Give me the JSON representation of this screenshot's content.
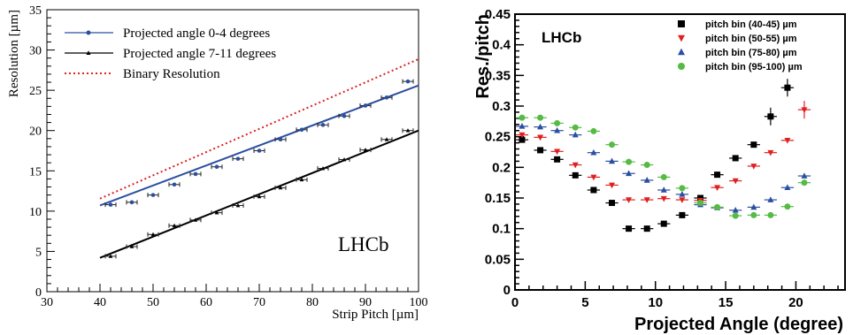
{
  "chart_data": [
    {
      "type": "scatter",
      "title": "",
      "xlabel": "Strip Pitch [µm]",
      "ylabel": "Resolution [µm]",
      "xlim": [
        30,
        100
      ],
      "ylim": [
        0,
        35
      ],
      "xticks": [
        "30",
        "40",
        "50",
        "60",
        "70",
        "80",
        "90",
        "100"
      ],
      "yticks": [
        "0",
        "5",
        "10",
        "15",
        "20",
        "25",
        "30",
        "35"
      ],
      "grid": false,
      "legend_position": "top-left",
      "annotation": "LHCb",
      "series": [
        {
          "name": "Projected angle 0-4 degrees",
          "color": "#2b4fa0",
          "marker": "circle",
          "x": [
            42,
            46,
            50,
            54,
            58,
            62,
            66,
            70,
            74,
            78,
            82,
            86,
            90,
            94,
            98
          ],
          "y": [
            10.8,
            11.1,
            12.0,
            13.3,
            14.6,
            15.5,
            16.5,
            17.5,
            18.9,
            20.1,
            20.7,
            21.8,
            23.1,
            24.1,
            26.1
          ],
          "fit": [
            [
              40,
              10.7
            ],
            [
              100,
              25.6
            ]
          ]
        },
        {
          "name": "Projected angle 7-11 degrees",
          "color": "#000000",
          "marker": "triangle",
          "x": [
            42,
            46,
            50,
            54,
            58,
            62,
            66,
            70,
            74,
            78,
            82,
            86,
            90,
            94,
            98
          ],
          "y": [
            4.4,
            5.6,
            7.1,
            8.2,
            8.9,
            9.8,
            10.7,
            11.8,
            12.9,
            13.9,
            15.3,
            16.4,
            17.6,
            18.9,
            20.0
          ],
          "fit": [
            [
              40,
              4.2
            ],
            [
              100,
              20.0
            ]
          ]
        },
        {
          "name": "Binary Resolution",
          "color": "#e02020",
          "style": "dotted",
          "x": [
            40,
            100
          ],
          "y": [
            11.55,
            28.87
          ]
        }
      ]
    },
    {
      "type": "scatter",
      "title": "",
      "xlabel": "Projected Angle (degree)",
      "ylabel": "Res./pitch",
      "xlim": [
        0,
        23.5
      ],
      "ylim": [
        0,
        0.45
      ],
      "xticks": [
        "0",
        "5",
        "10",
        "15",
        "20"
      ],
      "yticks": [
        "0",
        "0.05",
        "0.1",
        "0.15",
        "0.2",
        "0.25",
        "0.3",
        "0.35",
        "0.4",
        "0.45"
      ],
      "grid": false,
      "legend_position": "top-right",
      "annotation": "LHCb",
      "x": [
        0.5,
        1.8,
        3.0,
        4.3,
        5.6,
        6.9,
        8.1,
        9.4,
        10.6,
        11.9,
        13.2,
        14.4,
        15.7,
        17.0,
        18.2,
        19.4,
        20.6
      ],
      "series": [
        {
          "name": "pitch bin (40-45) µm",
          "color": "#000000",
          "marker": "square",
          "x": [
            0.5,
            1.8,
            3.0,
            4.3,
            5.6,
            6.9,
            8.1,
            9.4,
            10.6,
            11.9,
            13.2,
            14.4,
            15.7,
            17.0,
            18.2,
            19.4
          ],
          "y": [
            0.245,
            0.228,
            0.213,
            0.187,
            0.163,
            0.142,
            0.1,
            0.1,
            0.108,
            0.122,
            0.15,
            0.188,
            0.215,
            0.237,
            0.283,
            0.33
          ]
        },
        {
          "name": "pitch bin (50-55) µm",
          "color": "#e02020",
          "marker": "triangle-down",
          "x": [
            0.5,
            1.8,
            3.0,
            4.3,
            5.6,
            6.9,
            8.1,
            9.4,
            10.6,
            11.9,
            13.2,
            14.4,
            15.7,
            17.0,
            18.2,
            19.4,
            20.6
          ],
          "y": [
            0.253,
            0.249,
            0.226,
            0.204,
            0.184,
            0.171,
            0.147,
            0.147,
            0.149,
            0.147,
            0.146,
            0.167,
            0.178,
            0.202,
            0.224,
            0.244,
            0.294
          ]
        },
        {
          "name": "pitch bin (75-80) µm",
          "color": "#2b4fa0",
          "marker": "triangle",
          "x": [
            0.5,
            1.8,
            3.0,
            4.3,
            5.6,
            6.9,
            8.1,
            9.4,
            10.6,
            11.9,
            13.2,
            14.4,
            15.7,
            17.0,
            18.2,
            19.4,
            20.6
          ],
          "y": [
            0.267,
            0.266,
            0.26,
            0.253,
            0.224,
            0.21,
            0.19,
            0.179,
            0.163,
            0.156,
            0.139,
            0.134,
            0.13,
            0.135,
            0.147,
            0.167,
            0.186
          ]
        },
        {
          "name": "pitch bin (95-100) µm",
          "color": "#55bb44",
          "marker": "circle",
          "x": [
            0.5,
            1.8,
            3.0,
            4.3,
            5.6,
            6.9,
            8.1,
            9.4,
            10.6,
            11.9,
            13.2,
            14.4,
            15.7,
            17.0,
            18.2,
            19.4,
            20.6
          ],
          "y": [
            0.281,
            0.281,
            0.272,
            0.265,
            0.259,
            0.237,
            0.209,
            0.204,
            0.184,
            0.166,
            0.142,
            0.135,
            0.121,
            0.122,
            0.122,
            0.136,
            0.175
          ]
        }
      ]
    }
  ]
}
